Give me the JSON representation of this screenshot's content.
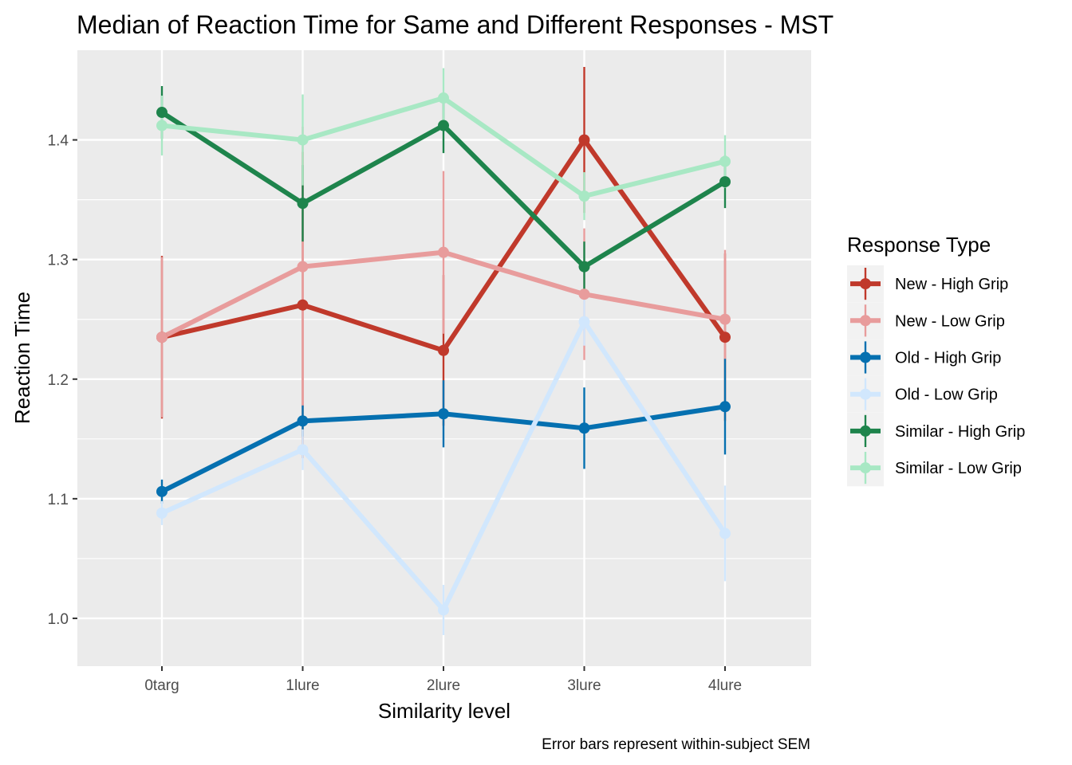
{
  "chart_data": {
    "type": "line",
    "title": "Median of Reaction Time for Same and Different Responses - MST",
    "xlabel": "Similarity level",
    "ylabel": "Reaction Time",
    "caption": "Error bars represent within-subject SEM",
    "categories": [
      "0targ",
      "1lure",
      "2lure",
      "3lure",
      "4lure"
    ],
    "ylim": [
      0.96,
      1.475
    ],
    "yticks": [
      1.0,
      1.1,
      1.2,
      1.3,
      1.4
    ],
    "ytick_labels": [
      "1.0",
      "1.1",
      "1.2",
      "1.3",
      "1.4"
    ],
    "grid": true,
    "legend": {
      "title": "Response Type",
      "position": "right"
    },
    "series": [
      {
        "name": "New - High Grip",
        "color": "#c0392b",
        "values": [
          1.235,
          1.262,
          1.224,
          1.4,
          1.235
        ],
        "errors": [
          0.068,
          0.128,
          0.063,
          0.061,
          0.07
        ]
      },
      {
        "name": "New - Low Grip",
        "color": "#e89c9c",
        "values": [
          1.235,
          1.294,
          1.306,
          1.271,
          1.25
        ],
        "errors": [
          0.067,
          0.117,
          0.068,
          0.055,
          0.058
        ]
      },
      {
        "name": "Old - High Grip",
        "color": "#0570b0",
        "values": [
          1.106,
          1.165,
          1.171,
          1.159,
          1.177
        ],
        "errors": [
          0.01,
          0.013,
          0.028,
          0.034,
          0.04
        ]
      },
      {
        "name": "Old - Low Grip",
        "color": "#d1e7fd",
        "values": [
          1.088,
          1.141,
          1.007,
          1.248,
          1.071
        ],
        "errors": [
          0.01,
          0.017,
          0.021,
          0.02,
          0.04
        ]
      },
      {
        "name": "Similar - High Grip",
        "color": "#1e844c",
        "values": [
          1.423,
          1.347,
          1.412,
          1.294,
          1.365
        ],
        "errors": [
          0.022,
          0.032,
          0.023,
          0.021,
          0.022
        ]
      },
      {
        "name": "Similar - Low Grip",
        "color": "#a8e8c4",
        "values": [
          1.412,
          1.4,
          1.435,
          1.353,
          1.382
        ],
        "errors": [
          0.025,
          0.038,
          0.025,
          0.02,
          0.022
        ]
      }
    ]
  }
}
